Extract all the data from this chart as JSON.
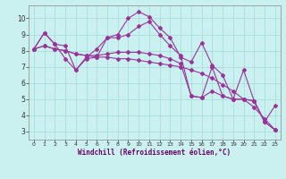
{
  "xlabel": "Windchill (Refroidissement éolien,°C)",
  "xlim": [
    -0.5,
    23.5
  ],
  "ylim": [
    2.5,
    10.8
  ],
  "yticks": [
    3,
    4,
    5,
    6,
    7,
    8,
    9,
    10
  ],
  "xticks": [
    0,
    1,
    2,
    3,
    4,
    5,
    6,
    7,
    8,
    9,
    10,
    11,
    12,
    13,
    14,
    15,
    16,
    17,
    18,
    19,
    20,
    21,
    22,
    23
  ],
  "background_color": "#caf0f0",
  "grid_color": "#aadddd",
  "line_color": "#993399",
  "lines": [
    [
      8.1,
      9.1,
      8.4,
      8.3,
      6.8,
      7.5,
      7.6,
      8.8,
      9.0,
      10.0,
      10.4,
      10.1,
      9.4,
      8.8,
      7.6,
      7.3,
      8.5,
      7.1,
      6.5,
      5.0,
      6.8,
      4.9,
      3.6,
      4.6
    ],
    [
      8.1,
      9.1,
      8.4,
      7.5,
      6.8,
      7.6,
      8.1,
      8.8,
      8.8,
      9.0,
      9.5,
      9.8,
      9.0,
      8.3,
      7.7,
      5.2,
      5.1,
      7.0,
      5.2,
      5.0,
      5.0,
      4.9,
      3.6,
      3.1
    ],
    [
      8.1,
      8.3,
      8.1,
      8.0,
      7.8,
      7.7,
      7.6,
      7.6,
      7.5,
      7.5,
      7.4,
      7.3,
      7.2,
      7.1,
      7.0,
      6.8,
      6.6,
      6.3,
      5.9,
      5.5,
      5.0,
      4.5,
      3.8,
      3.1
    ],
    [
      8.1,
      8.3,
      8.1,
      8.0,
      7.8,
      7.7,
      7.7,
      7.8,
      7.9,
      7.9,
      7.9,
      7.8,
      7.7,
      7.5,
      7.2,
      5.2,
      5.1,
      5.5,
      5.2,
      5.0,
      5.0,
      4.9,
      3.6,
      3.1
    ]
  ],
  "marker": "D",
  "markersize": 2,
  "linewidth": 0.8
}
